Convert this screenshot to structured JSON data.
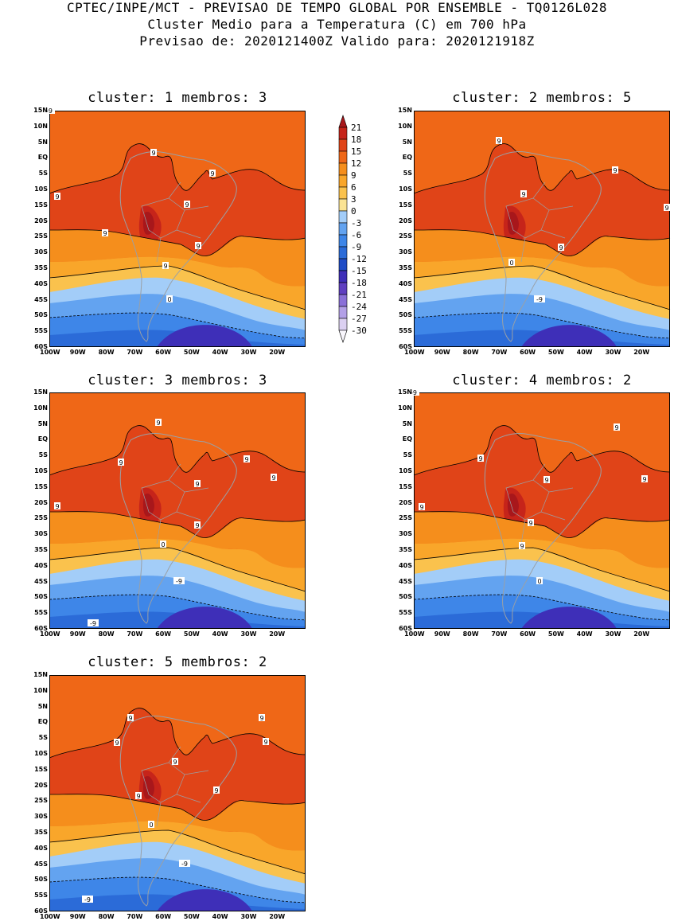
{
  "header": {
    "line1": "CPTEC/INPE/MCT - PREVISAO DE TEMPO GLOBAL POR ENSEMBLE - TQ0126L028",
    "line2": "Cluster Medio para a Temperatura (C) em 700 hPa",
    "line3": "Previsao de: 2020121400Z   Valido para: 2020121918Z"
  },
  "colors": {
    "levels": [
      "#f9f7fd",
      "#dbd0f1",
      "#b3a0e7",
      "#8a70d8",
      "#5f3fc0",
      "#3e2fb8",
      "#1f4cc6",
      "#2b6bd8",
      "#3e86e8",
      "#63a3f0",
      "#a3cdf8",
      "#fae394",
      "#fac24d",
      "#f9a62a",
      "#f58e1c",
      "#ef6717",
      "#e04418",
      "#c6241a",
      "#a8171b"
    ],
    "coast": "#9aa0a6",
    "contour": "#000000"
  },
  "chart_data": {
    "type": "contour",
    "variable": "Temperatura (C) em 700 hPa",
    "colorbar": {
      "labels": [
        "21",
        "18",
        "15",
        "12",
        "9",
        "6",
        "3",
        "0",
        "-3",
        "-6",
        "-9",
        "-12",
        "-15",
        "-18",
        "-21",
        "-24",
        "-27",
        "-30"
      ],
      "levels": [
        21,
        18,
        15,
        12,
        9,
        6,
        3,
        0,
        -3,
        -6,
        -9,
        -12,
        -15,
        -18,
        -21,
        -24,
        -27,
        -30
      ]
    },
    "x_ticks": [
      "100W",
      "90W",
      "80W",
      "70W",
      "60W",
      "50W",
      "40W",
      "30W",
      "20W"
    ],
    "y_ticks": [
      "15N",
      "10N",
      "5N",
      "EQ",
      "5S",
      "10S",
      "15S",
      "20S",
      "25S",
      "30S",
      "35S",
      "40S",
      "45S",
      "50S",
      "55S",
      "60S"
    ],
    "xlim": [
      -100,
      -10
    ],
    "ylim": [
      -60,
      15
    ],
    "panels": [
      {
        "title": "cluster: 1   membros: 3",
        "contour_labels": [
          "9",
          "9",
          "9",
          "9",
          "9",
          "9",
          "9",
          "0",
          "-9"
        ]
      },
      {
        "title": "cluster: 2   membros: 5",
        "contour_labels": [
          "9",
          "9",
          "9",
          "9",
          "9",
          "0",
          "-9"
        ]
      },
      {
        "title": "cluster: 3   membros: 3",
        "contour_labels": [
          "9",
          "9",
          "9",
          "9",
          "9",
          "9",
          "9",
          "0",
          "-9",
          "-9"
        ]
      },
      {
        "title": "cluster: 4   membros: 2",
        "contour_labels": [
          "9",
          "9",
          "9",
          "9",
          "9",
          "9",
          "9",
          "0",
          "-9"
        ]
      },
      {
        "title": "cluster: 5   membros: 2",
        "contour_labels": [
          "9",
          "9",
          "9",
          "9",
          "9",
          "9",
          "9",
          "0",
          "-9",
          "-9"
        ]
      }
    ]
  }
}
